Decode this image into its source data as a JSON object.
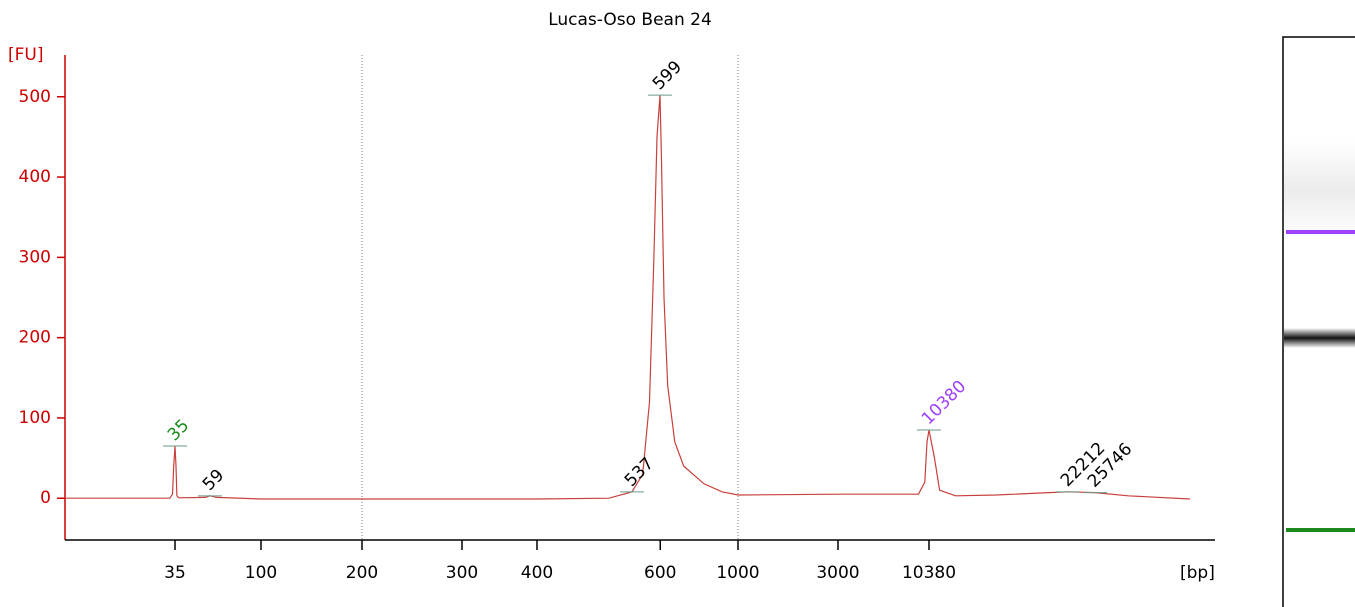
{
  "chart_data": {
    "type": "line",
    "title": "Lucas-Oso Bean 24",
    "y_label": "[FU]",
    "x_label": "[bp]",
    "ylim": [
      -52,
      552
    ],
    "yticks": [
      0,
      100,
      200,
      300,
      400,
      500
    ],
    "xticks": [
      35,
      100,
      200,
      300,
      400,
      600,
      1000,
      3000,
      10380
    ],
    "grid_x": [
      200,
      1000
    ],
    "axis_color": "#cc0000",
    "series": [
      {
        "name": "Lucas-Oso Bean 24",
        "color": "#c8403c",
        "x": [
          10,
          33,
          34,
          34.5,
          35,
          35.5,
          36,
          37,
          55,
          59,
          63,
          100,
          200,
          400,
          500,
          537,
          560,
          575,
          585,
          592,
          599,
          605,
          615,
          630,
          660,
          700,
          800,
          900,
          1000,
          3000,
          9000,
          9800,
          10100,
          10380,
          10700,
          11000,
          12000,
          15000,
          20000,
          22212,
          25746,
          30000,
          40000
        ],
        "values": [
          0,
          0,
          5,
          40,
          65,
          40,
          3,
          0.5,
          1,
          3,
          1,
          -1,
          -1,
          -1,
          0,
          8,
          30,
          120,
          300,
          450,
          502,
          420,
          250,
          140,
          70,
          40,
          18,
          8,
          4,
          5,
          5,
          20,
          70,
          85,
          50,
          10,
          3,
          4,
          7,
          8,
          7,
          3,
          -1
        ]
      }
    ],
    "peaks": [
      {
        "label": "35",
        "x": 35,
        "y": 65,
        "color": "#1a8a1a"
      },
      {
        "label": "59",
        "x": 59,
        "y": 3,
        "color": "#000000"
      },
      {
        "label": "537",
        "x": 537,
        "y": 8,
        "color": "#000000"
      },
      {
        "label": "599",
        "x": 599,
        "y": 502,
        "color": "#000000"
      },
      {
        "label": "10380",
        "x": 10380,
        "y": 85,
        "color": "#a040ff"
      },
      {
        "label": "22212",
        "x": 22212,
        "y": 8,
        "color": "#000000"
      },
      {
        "label": "25746",
        "x": 25746,
        "y": 7,
        "color": "#000000"
      }
    ]
  }
}
